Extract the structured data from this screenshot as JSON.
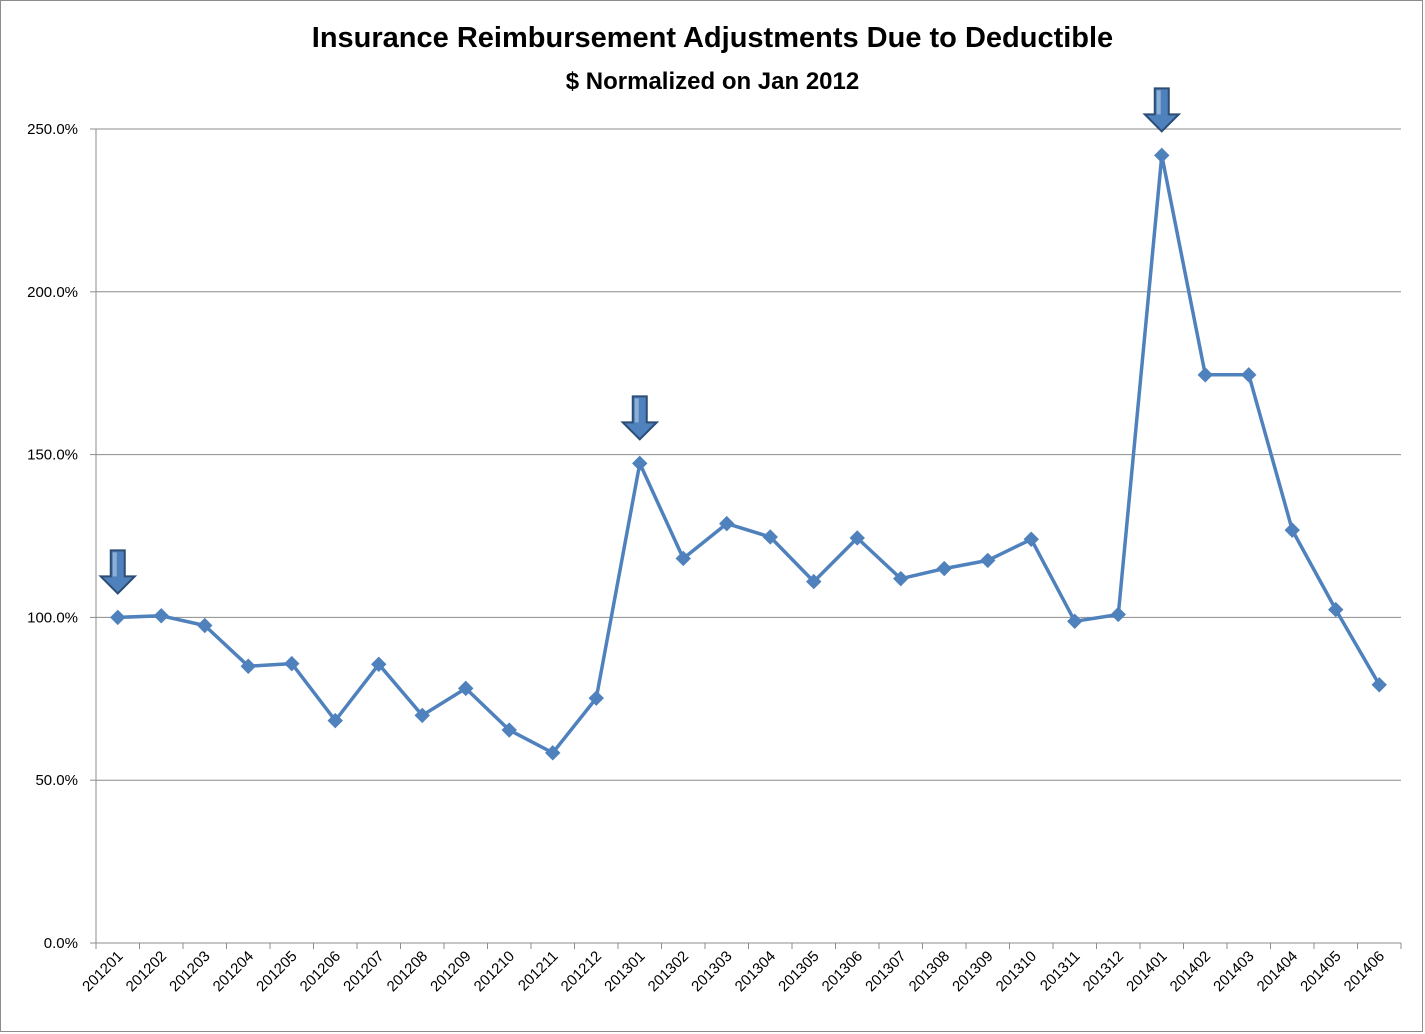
{
  "chart_data": {
    "type": "line",
    "title": "Insurance Reimbursement Adjustments Due to Deductible",
    "subtitle": "$ Normalized on Jan 2012",
    "xlabel": "",
    "ylabel": "",
    "ylim": [
      0,
      250
    ],
    "y_ticks": [
      "0.0%",
      "50.0%",
      "100.0%",
      "150.0%",
      "200.0%",
      "250.0%"
    ],
    "y_tick_values": [
      0,
      50,
      100,
      150,
      200,
      250
    ],
    "grid": "horizontal",
    "legend": "none",
    "categories": [
      "201201",
      "201202",
      "201203",
      "201204",
      "201205",
      "201206",
      "201207",
      "201208",
      "201209",
      "201210",
      "201211",
      "201212",
      "201301",
      "201302",
      "201303",
      "201304",
      "201305",
      "201306",
      "201307",
      "201308",
      "201309",
      "201310",
      "201311",
      "201312",
      "201401",
      "201402",
      "201403",
      "201404",
      "201405",
      "201406"
    ],
    "series": [
      {
        "values": [
          100.0,
          100.5,
          97.5,
          85.0,
          85.8,
          68.3,
          85.6,
          69.9,
          78.2,
          65.4,
          58.4,
          75.2,
          147.3,
          118.1,
          128.8,
          124.7,
          111.0,
          124.4,
          111.9,
          115.0,
          117.5,
          124.0,
          98.8,
          100.9,
          241.9,
          174.5,
          174.5,
          126.8,
          102.4,
          79.3
        ],
        "color": "#4f81bd"
      }
    ],
    "annotations": [
      {
        "type": "down-arrow",
        "category": "201201"
      },
      {
        "type": "down-arrow",
        "category": "201301"
      },
      {
        "type": "down-arrow",
        "category": "201401"
      }
    ]
  },
  "colors": {
    "line": "#4f81bd",
    "arrow_fill": "#4f81bd",
    "arrow_stroke": "#2c4d75",
    "gridline": "#8c8c8c",
    "axis": "#8c8c8c"
  }
}
